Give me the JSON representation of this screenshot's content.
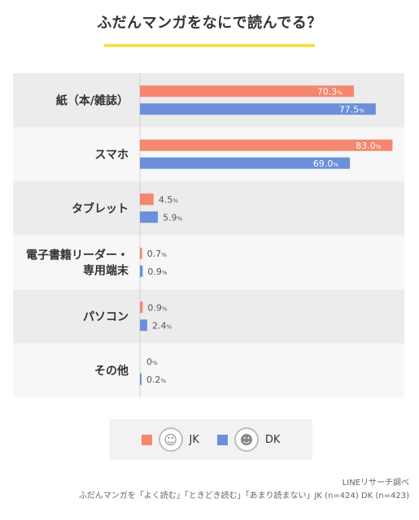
{
  "chart_data": {
    "type": "bar",
    "orientation": "horizontal",
    "title": "ふだんマンガをなにで読んでる？",
    "categories": [
      "紙（本/雑誌）",
      "スマホ",
      "タブレット",
      "電子書籍リーダー・専用端末",
      "パソコン",
      "その他"
    ],
    "series": [
      {
        "name": "JK",
        "color": "#f4876e",
        "values": [
          70.3,
          83.0,
          4.5,
          0.7,
          0.9,
          0
        ]
      },
      {
        "name": "DK",
        "color": "#6b8fdc",
        "values": [
          77.5,
          69.0,
          5.9,
          0.9,
          2.4,
          0.2
        ]
      }
    ],
    "value_suffix": "%",
    "xlim": [
      0,
      100
    ],
    "grid": false,
    "legend_position": "bottom"
  },
  "legend": {
    "jk_label": "JK",
    "dk_label": "DK"
  },
  "source": {
    "line1": "LINEリサーチ調べ",
    "line2": "ふだんマンガを「よく読む」「ときどき読む」「あまり読まない」JK (n=424) DK (n=423)"
  },
  "icons": [
    "girl-face-icon",
    "boy-face-icon"
  ]
}
